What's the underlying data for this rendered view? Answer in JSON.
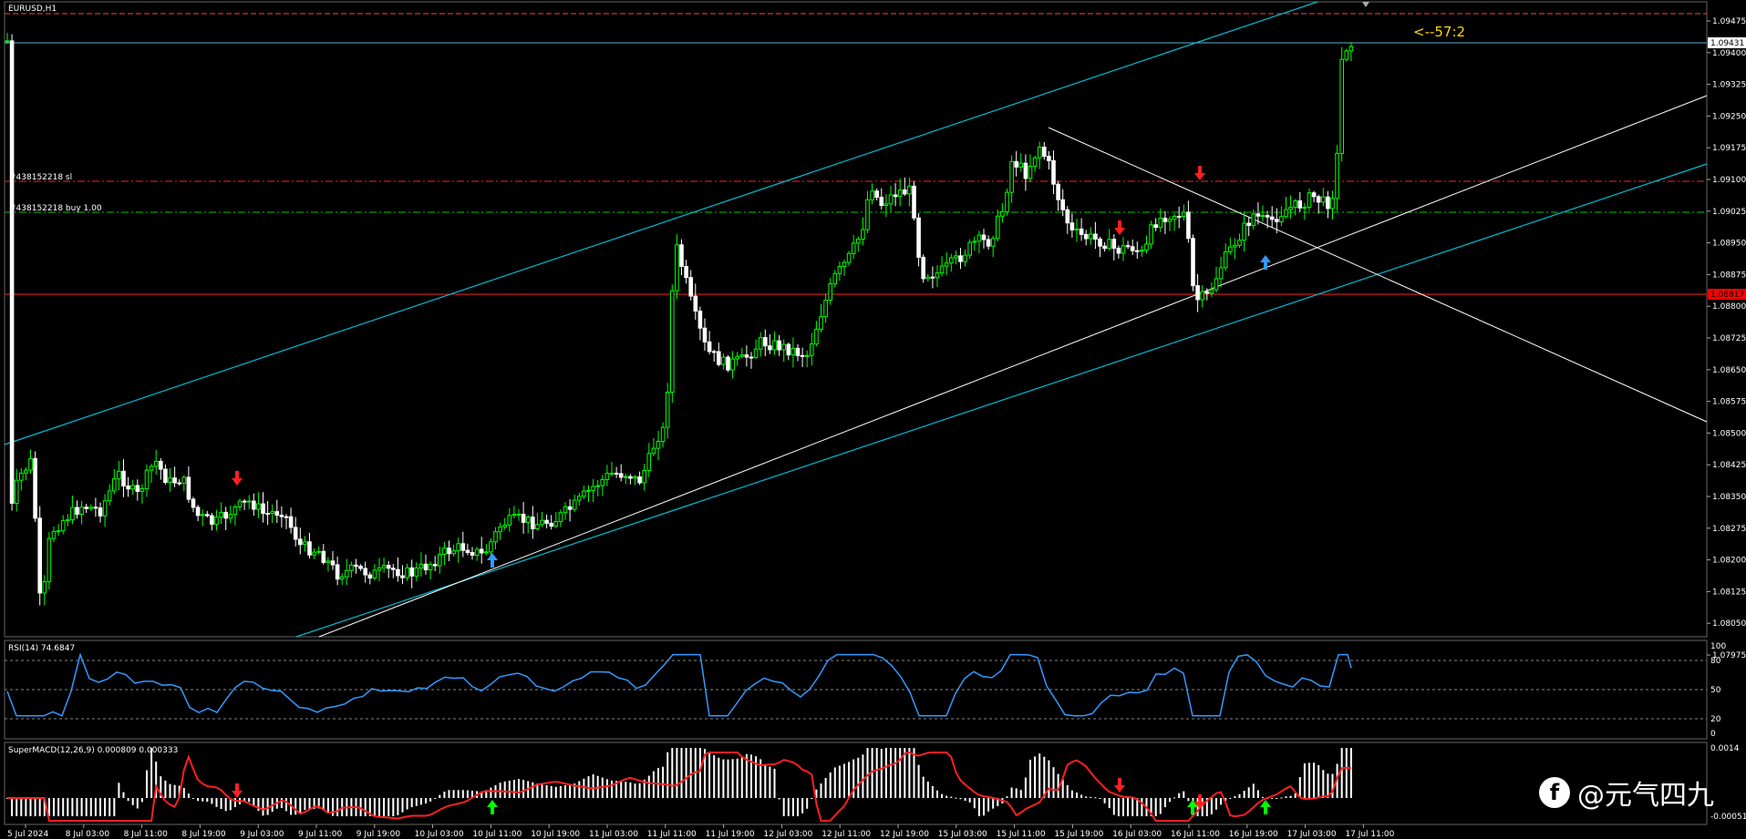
{
  "chart": {
    "symbol_label": "EURUSD,H1",
    "countdown": "<--57:2",
    "current_price_label": "1.09431",
    "stop_level_label": "1.08817",
    "order_sl_label": "#438152218 sl",
    "order_buy_label": "#438152218 buy 1.00",
    "price_axis": [
      "1.09475",
      "1.09400",
      "1.09325",
      "1.09250",
      "1.09175",
      "1.09100",
      "1.09025",
      "1.08950",
      "1.08875",
      "1.08800",
      "1.08725",
      "1.08650",
      "1.08575",
      "1.08500",
      "1.08425",
      "1.08350",
      "1.08275",
      "1.08200",
      "1.08125",
      "1.08050",
      "1.07975"
    ],
    "time_axis": [
      "5 Jul 2024",
      "8 Jul 03:00",
      "8 Jul 11:00",
      "8 Jul 19:00",
      "9 Jul 03:00",
      "9 Jul 11:00",
      "9 Jul 19:00",
      "10 Jul 03:00",
      "10 Jul 11:00",
      "10 Jul 19:00",
      "11 Jul 03:00",
      "11 Jul 11:00",
      "11 Jul 19:00",
      "12 Jul 03:00",
      "12 Jul 11:00",
      "12 Jul 19:00",
      "15 Jul 03:00",
      "15 Jul 11:00",
      "15 Jul 19:00",
      "16 Jul 03:00",
      "16 Jul 11:00",
      "16 Jul 19:00",
      "17 Jul 03:00",
      "17 Jul 11:00"
    ]
  },
  "rsi": {
    "label": "RSI(14) 74.6847",
    "axis": [
      "100",
      "80",
      "50",
      "20",
      "0"
    ]
  },
  "macd": {
    "label": "SuperMACD(12,26,9) 0.000809 0.000333",
    "axis": [
      "0.0014",
      "-0.000517"
    ]
  },
  "watermark": {
    "icon": "f",
    "text": "@元气四九"
  },
  "colors": {
    "bull": "#00ff00",
    "bear": "#ffffff",
    "channel": "#00bcd4",
    "sl_line": "#ff0000",
    "buy_line": "#00c800",
    "rsi": "#3399ff",
    "signal": "#ff0000"
  },
  "chart_data": {
    "type": "candlestick",
    "ylim": [
      1.07975,
      1.09475
    ],
    "current_price": 1.09431,
    "rsi_value": 74.6847,
    "rsi_levels": [
      80,
      50,
      20
    ],
    "macd_main": 0.000809,
    "macd_signal": 0.000333
  }
}
